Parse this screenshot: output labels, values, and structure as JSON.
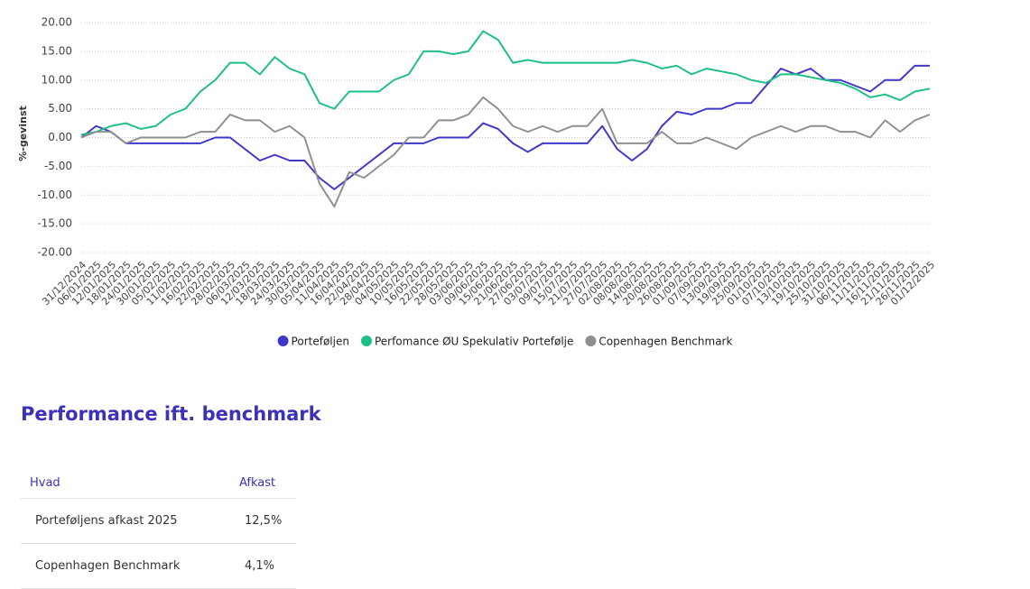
{
  "chart_data": {
    "type": "line",
    "y_label": "%-gevinst",
    "categories": [
      "31/12/2024",
      "06/01/2025",
      "12/01/2025",
      "18/01/2025",
      "24/01/2025",
      "30/01/2025",
      "05/02/2025",
      "11/02/2025",
      "16/02/2025",
      "22/02/2025",
      "28/02/2025",
      "06/03/2025",
      "12/03/2025",
      "18/03/2025",
      "24/03/2025",
      "30/03/2025",
      "05/04/2025",
      "11/04/2025",
      "16/04/2025",
      "22/04/2025",
      "28/04/2025",
      "04/05/2025",
      "10/05/2025",
      "16/05/2025",
      "22/05/2025",
      "28/05/2025",
      "03/06/2025",
      "09/06/2025",
      "15/06/2025",
      "21/06/2025",
      "27/06/2025",
      "03/07/2025",
      "09/07/2025",
      "15/07/2025",
      "21/07/2025",
      "27/07/2025",
      "02/08/2025",
      "08/08/2025",
      "14/08/2025",
      "20/08/2025",
      "26/08/2025",
      "01/09/2025",
      "07/09/2025",
      "13/09/2025",
      "19/09/2025",
      "25/09/2025",
      "01/10/2025",
      "07/10/2025",
      "13/10/2025",
      "19/10/2025",
      "25/10/2025",
      "31/10/2025",
      "06/11/2025",
      "11/11/2025",
      "16/11/2025",
      "21/11/2025",
      "26/11/2025",
      "01/12/2025"
    ],
    "series": [
      {
        "name": "Porteføljen",
        "color": "#3f37c9",
        "values": [
          0,
          2,
          1,
          -1,
          -1,
          -1,
          -1,
          -1,
          -1,
          0,
          0,
          -2,
          -4,
          -3,
          -4,
          -4,
          -7,
          -9,
          -7,
          -5,
          -3,
          -1,
          -1,
          -1,
          0,
          0,
          0,
          2.5,
          1.5,
          -1,
          -2.5,
          -1,
          -1,
          -1,
          -1,
          2,
          -2,
          -4,
          -2,
          2,
          4.5,
          4,
          5,
          5,
          6,
          6,
          9,
          12,
          11,
          12,
          10,
          10,
          9,
          8,
          10,
          10,
          12.5,
          12.5
        ]
      },
      {
        "name": "Perfomance ØU Spekulativ Portefølje",
        "color": "#1dbf87",
        "values": [
          0.5,
          1,
          2,
          2.5,
          1.5,
          2,
          4,
          5,
          8,
          10,
          13,
          13,
          11,
          14,
          12,
          11,
          6,
          5,
          8,
          8,
          8,
          10,
          11,
          15,
          15,
          14.5,
          15,
          18.5,
          17,
          13,
          13.5,
          13,
          13,
          13,
          13,
          13,
          13,
          13.5,
          13,
          12,
          12.5,
          11,
          12,
          11.5,
          11,
          10,
          9.5,
          11,
          11,
          10.5,
          10,
          9.5,
          8.5,
          7,
          7.5,
          6.5,
          8,
          8.5
        ]
      },
      {
        "name": "Copenhagen Benchmark",
        "color": "#8c9190",
        "values": [
          0,
          1,
          1,
          -1,
          0,
          0,
          0,
          0,
          1,
          1,
          4,
          3,
          3,
          1,
          2,
          0,
          -8,
          -12,
          -6,
          -7,
          -5,
          -3,
          0,
          0,
          3,
          3,
          4,
          7,
          5,
          2,
          1,
          2,
          1,
          2,
          2,
          5,
          -1,
          -1,
          -1,
          1,
          -1,
          -1,
          0,
          -1,
          -2,
          0,
          1,
          2,
          1,
          2,
          2,
          1,
          1,
          0,
          3,
          1,
          3,
          4
        ]
      }
    ],
    "ylim": [
      -20,
      20
    ],
    "yticks": [
      {
        "value": -20,
        "label": "-20.00"
      },
      {
        "value": -15,
        "label": "-15.00"
      },
      {
        "value": -10,
        "label": "-10.00"
      },
      {
        "value": -5,
        "label": "-5.00"
      },
      {
        "value": 0,
        "label": "0.00"
      },
      {
        "value": 5,
        "label": "5.00"
      },
      {
        "value": 10,
        "label": "10.00"
      },
      {
        "value": 15,
        "label": "15.00"
      },
      {
        "value": 20,
        "label": "20.00"
      }
    ],
    "grid": true,
    "legend": "bottom"
  },
  "section": {
    "title": "Performance ift. benchmark",
    "table": {
      "header": [
        "Hvad",
        "Afkast"
      ],
      "rows": [
        [
          "Porteføljens afkast 2025",
          "12,5%"
        ],
        [
          "Copenhagen Benchmark",
          "4,1%"
        ]
      ]
    }
  }
}
